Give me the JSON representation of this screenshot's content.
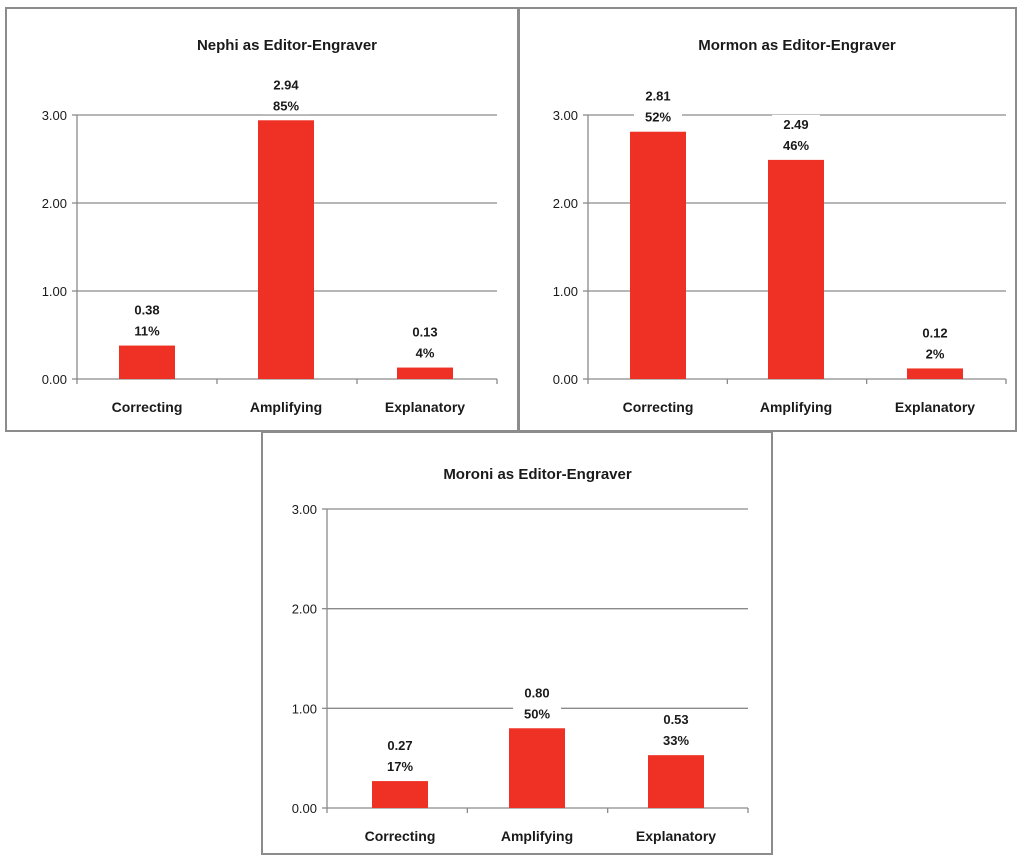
{
  "colors": {
    "bar": "#ee3124",
    "gridline": "#8a8a8a",
    "panel_border": "#8c8c8c"
  },
  "chart_data": [
    {
      "type": "bar",
      "title": "Nephi as Editor-Engraver",
      "categories": [
        "Correcting",
        "Amplifying",
        "Explanatory"
      ],
      "values": [
        0.38,
        2.94,
        0.13
      ],
      "value_labels": [
        "0.38",
        "2.94",
        "0.13"
      ],
      "percent_labels": [
        "11%",
        "85%",
        "4%"
      ],
      "yticks": [
        "0.00",
        "1.00",
        "2.00",
        "3.00"
      ],
      "ylim": [
        0,
        3
      ],
      "grid": true,
      "legend": "none"
    },
    {
      "type": "bar",
      "title": "Mormon as Editor-Engraver",
      "categories": [
        "Correcting",
        "Amplifying",
        "Explanatory"
      ],
      "values": [
        2.81,
        2.49,
        0.12
      ],
      "value_labels": [
        "2.81",
        "2.49",
        "0.12"
      ],
      "percent_labels": [
        "52%",
        "46%",
        "2%"
      ],
      "yticks": [
        "0.00",
        "1.00",
        "2.00",
        "3.00"
      ],
      "ylim": [
        0,
        3
      ],
      "grid": true,
      "legend": "none"
    },
    {
      "type": "bar",
      "title": "Moroni as Editor-Engraver",
      "categories": [
        "Correcting",
        "Amplifying",
        "Explanatory"
      ],
      "values": [
        0.27,
        0.8,
        0.53
      ],
      "value_labels": [
        "0.27",
        "0.80",
        "0.53"
      ],
      "percent_labels": [
        "17%",
        "50%",
        "33%"
      ],
      "yticks": [
        "0.00",
        "1.00",
        "2.00",
        "3.00"
      ],
      "ylim": [
        0,
        3
      ],
      "grid": true,
      "legend": "none"
    }
  ]
}
